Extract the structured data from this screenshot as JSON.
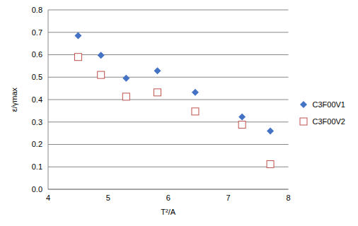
{
  "chart_data": {
    "type": "scatter",
    "xlabel": "T²/A",
    "ylabel": "ε/γmax",
    "xlim": [
      4,
      8
    ],
    "xticks": [
      4,
      5,
      6,
      7,
      8
    ],
    "ylim": [
      0,
      0.8
    ],
    "yticks": [
      {
        "value": 0,
        "label": "0.0"
      },
      {
        "value": 0.1,
        "label": "0.1"
      },
      {
        "value": 0.2,
        "label": "0.2"
      },
      {
        "value": 0.3,
        "label": "0.3"
      },
      {
        "value": 0.4,
        "label": "0.4"
      },
      {
        "value": 0.5,
        "label": "0.5"
      },
      {
        "value": 0.6,
        "label": "0.6"
      },
      {
        "value": 0.7,
        "label": "0.7"
      },
      {
        "value": 0.8,
        "label": "0.8"
      }
    ],
    "grid": "y",
    "legend": "right",
    "series": [
      {
        "name": "C3F00V1",
        "color": "#4472c4",
        "marker": "diamond",
        "x": [
          4.5,
          4.88,
          5.3,
          5.82,
          6.45,
          7.23,
          7.7
        ],
        "values": [
          0.685,
          0.598,
          0.495,
          0.528,
          0.432,
          0.323,
          0.26
        ]
      },
      {
        "name": "C3F00V2",
        "color": "#c0504d",
        "marker": "square",
        "x": [
          4.5,
          4.88,
          5.3,
          5.82,
          6.45,
          7.23,
          7.7
        ],
        "values": [
          0.59,
          0.51,
          0.413,
          0.432,
          0.347,
          0.288,
          0.112
        ]
      }
    ]
  }
}
